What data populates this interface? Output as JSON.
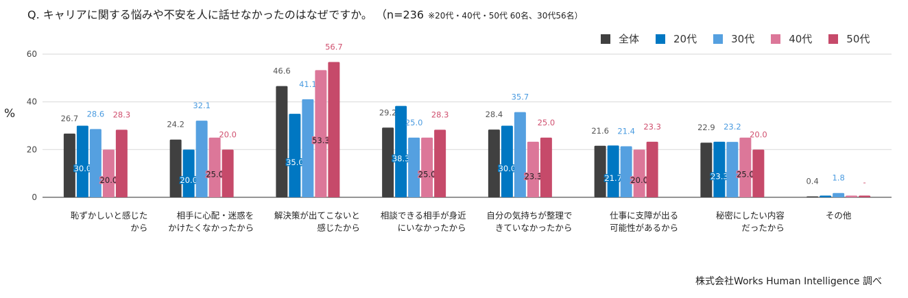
{
  "title": {
    "question": "Q. キャリアに関する悩みや不安を人に話せなかったのはなぜですか。 （n=236",
    "note": "※20代・40代・50代 60名、30代56名）"
  },
  "credit": "株式会社Works Human Intelligence 調べ",
  "chart_data": {
    "type": "bar",
    "title": "Q. キャリアに関する悩みや不安を人に話せなかったのはなぜですか。 （n=236 ※20代・40代・50代 60名、30代56名）",
    "xlabel": "",
    "ylabel": "%",
    "ylim": [
      0,
      60
    ],
    "yticks": [
      0,
      20,
      40,
      60
    ],
    "grid": true,
    "legend_position": "top-right",
    "categories": [
      [
        "恥ずかしいと感じた",
        "から"
      ],
      [
        "相手に心配・迷惑を",
        "かけたくなかったから"
      ],
      [
        "解決策が出てこないと",
        "感じたから"
      ],
      [
        "相談できる相手が身近",
        "にいなかったから"
      ],
      [
        "自分の気持ちが整理で",
        "きていなかったから"
      ],
      [
        "仕事に支障が出る",
        "可能性があるから"
      ],
      [
        "秘密にしたい内容",
        "だったから"
      ],
      [
        "その他"
      ]
    ],
    "series": [
      {
        "name": "全体",
        "color": "#404040",
        "labelColor": "#555555",
        "labelStyle": "above",
        "values": [
          26.7,
          24.2,
          46.6,
          29.2,
          28.4,
          21.6,
          22.9,
          0.4
        ],
        "labels": [
          "26.7",
          "24.2",
          "46.6",
          "29.2",
          "28.4",
          "21.6",
          "22.9",
          "0.4"
        ]
      },
      {
        "name": "20代",
        "color": "#0077C2",
        "labelColor": "#ffffff",
        "labelStyle": "inside",
        "values": [
          30.0,
          20.0,
          35.0,
          38.3,
          30.0,
          21.7,
          23.3,
          0.0
        ],
        "labels": [
          "30.0",
          "20.0",
          "35.0",
          "38.3",
          "30.0",
          "21.7",
          "23.3",
          ""
        ]
      },
      {
        "name": "30代",
        "color": "#55A0E0",
        "labelColor": "#4A9BE0",
        "labelStyle": "above",
        "values": [
          28.6,
          32.1,
          41.1,
          25.0,
          35.7,
          21.4,
          23.2,
          1.8
        ],
        "labels": [
          "28.6",
          "32.1",
          "41.1",
          "25.0",
          "35.7",
          "21.4",
          "23.2",
          "1.8"
        ]
      },
      {
        "name": "40代",
        "color": "#DC7799",
        "labelColor": "#222222",
        "labelStyle": "inside",
        "values": [
          20.0,
          25.0,
          53.3,
          25.0,
          23.3,
          20.0,
          25.0,
          0.0
        ],
        "labels": [
          "20.0",
          "25.0",
          "53.3",
          "25.0",
          "23.3",
          "20.0",
          "25.0",
          ""
        ]
      },
      {
        "name": "50代",
        "color": "#C64A6A",
        "labelColor": "#D0506F",
        "labelStyle": "above",
        "values": [
          28.3,
          20.0,
          56.7,
          28.3,
          25.0,
          23.3,
          20.0,
          0
        ],
        "labels": [
          "28.3",
          "20.0",
          "56.7",
          "28.3",
          "25.0",
          "23.3",
          "20.0",
          "-"
        ]
      }
    ]
  }
}
